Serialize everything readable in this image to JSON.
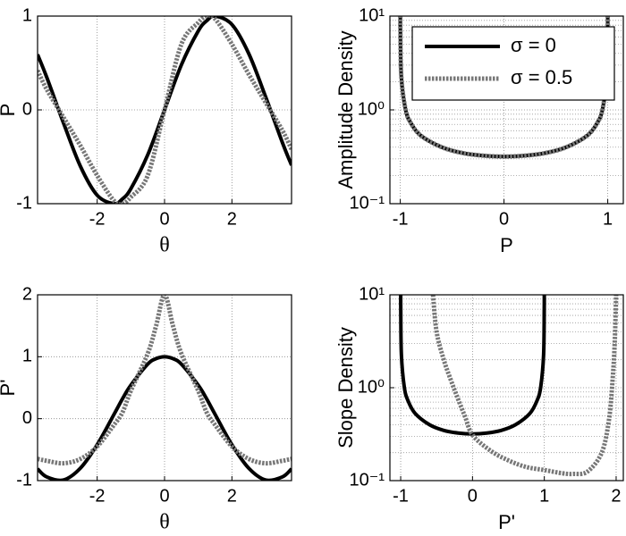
{
  "chart_data": [
    {
      "type": "line",
      "xlabel": "θ",
      "ylabel": "P",
      "grid": true,
      "xlim": [
        -3.77,
        3.77
      ],
      "xticks": [
        -2,
        0,
        2
      ],
      "ylim": [
        -1,
        1
      ],
      "yticks": [
        -1,
        0,
        1
      ],
      "x": [
        -3.77,
        -3.5,
        -3,
        -2.5,
        -2,
        -1.5,
        -1.25,
        -1,
        -0.5,
        0,
        0.5,
        1,
        1.25,
        1.5,
        2,
        2.5,
        3,
        3.5,
        3.77
      ],
      "series": [
        {
          "color": "#000000",
          "style": "solid",
          "values": [
            0.59,
            0.35,
            -0.14,
            -0.6,
            -0.91,
            -1.0,
            -0.95,
            -0.84,
            -0.48,
            0,
            0.48,
            0.84,
            0.95,
            1.0,
            0.91,
            0.6,
            0.14,
            -0.35,
            -0.59
          ]
        },
        {
          "color": "#777777",
          "style": "dotted",
          "values": [
            0.42,
            0.22,
            -0.08,
            -0.38,
            -0.7,
            -0.97,
            -1.0,
            -0.93,
            -0.7,
            0,
            0.7,
            0.93,
            1.0,
            0.97,
            0.7,
            0.38,
            0.08,
            -0.22,
            -0.42
          ]
        }
      ]
    },
    {
      "type": "line",
      "xlabel": "P",
      "ylabel": "Amplitude Density",
      "grid": true,
      "log_y": true,
      "minor_grid": true,
      "legend": "upper right",
      "xlim": [
        -1.1,
        1.15
      ],
      "xticks": [
        -1,
        0,
        1
      ],
      "ylim": [
        0.1,
        10
      ],
      "yticks": [
        {
          "value": 0.1,
          "label": "10⁻¹"
        },
        {
          "value": 1,
          "label": "10⁰"
        },
        {
          "value": 10,
          "label": "10¹"
        }
      ],
      "x": [
        -0.9995,
        -0.999,
        -0.99,
        -0.95,
        -0.9,
        -0.8,
        -0.6,
        -0.4,
        -0.2,
        0,
        0.2,
        0.4,
        0.6,
        0.8,
        0.9,
        0.95,
        0.99,
        0.999,
        0.9995
      ],
      "series": [
        {
          "name": "σ = 0",
          "color": "#000000",
          "style": "solid",
          "values": [
            10.07,
            7.12,
            2.26,
            1.02,
            0.73,
            0.53,
            0.4,
            0.347,
            0.325,
            0.318,
            0.325,
            0.347,
            0.4,
            0.53,
            0.73,
            1.02,
            2.26,
            7.12,
            10.07
          ]
        },
        {
          "name": "σ = 0.5",
          "color": "#777777",
          "style": "dotted",
          "values": [
            10.07,
            7.12,
            2.26,
            1.02,
            0.73,
            0.53,
            0.4,
            0.347,
            0.325,
            0.318,
            0.325,
            0.347,
            0.4,
            0.53,
            0.73,
            1.02,
            2.26,
            7.12,
            10.07
          ]
        }
      ]
    },
    {
      "type": "line",
      "xlabel": "θ",
      "ylabel": "P'",
      "grid": true,
      "xlim": [
        -3.77,
        3.77
      ],
      "xticks": [
        -2,
        0,
        2
      ],
      "ylim": [
        -1,
        2
      ],
      "yticks": [
        -1,
        0,
        1,
        2
      ],
      "x": [
        -3.77,
        -3.5,
        -3,
        -2.5,
        -2,
        -1.5,
        -1.25,
        -1,
        -0.5,
        -0.25,
        0,
        0.25,
        0.5,
        1,
        1.25,
        1.5,
        2,
        2.5,
        3,
        3.5,
        3.77
      ],
      "series": [
        {
          "color": "#000000",
          "style": "solid",
          "values": [
            -0.81,
            -0.94,
            -0.99,
            -0.8,
            -0.42,
            0.07,
            0.32,
            0.54,
            0.88,
            0.97,
            1,
            0.97,
            0.88,
            0.54,
            0.32,
            0.07,
            -0.42,
            -0.8,
            -0.99,
            -0.94,
            -0.81
          ]
        },
        {
          "color": "#777777",
          "style": "dotted",
          "values": [
            -0.65,
            -0.68,
            -0.72,
            -0.65,
            -0.45,
            -0.1,
            0.1,
            0.45,
            1.05,
            1.5,
            2.0,
            1.5,
            1.05,
            0.45,
            0.1,
            -0.1,
            -0.45,
            -0.65,
            -0.72,
            -0.68,
            -0.65
          ]
        }
      ]
    },
    {
      "type": "line",
      "xlabel": "P'",
      "ylabel": "Slope Density",
      "grid": true,
      "log_y": true,
      "minor_grid": true,
      "xlim": [
        -1.15,
        2.1
      ],
      "xticks": [
        -1,
        0,
        1,
        2
      ],
      "ylim": [
        0.1,
        10
      ],
      "yticks": [
        {
          "value": 0.1,
          "label": "10⁻¹"
        },
        {
          "value": 1,
          "label": "10⁰"
        },
        {
          "value": 10,
          "label": "10¹"
        }
      ],
      "series": [
        {
          "color": "#000000",
          "style": "solid",
          "x": [
            -0.9995,
            -0.999,
            -0.99,
            -0.95,
            -0.9,
            -0.8,
            -0.6,
            -0.4,
            -0.2,
            0,
            0.2,
            0.4,
            0.6,
            0.8,
            0.9,
            0.95,
            0.99,
            0.999,
            0.9995
          ],
          "values": [
            10.07,
            7.12,
            2.26,
            1.02,
            0.73,
            0.53,
            0.4,
            0.347,
            0.325,
            0.318,
            0.325,
            0.347,
            0.4,
            0.53,
            0.73,
            1.02,
            2.26,
            7.12,
            10.07
          ]
        },
        {
          "color": "#777777",
          "style": "dotted",
          "x": [
            -0.55,
            -0.5,
            -0.4,
            -0.3,
            -0.2,
            -0.1,
            0,
            0.25,
            0.5,
            0.75,
            1,
            1.25,
            1.4,
            1.6,
            1.8,
            1.9,
            1.95,
            1.98,
            2.0
          ],
          "values": [
            10,
            4,
            2,
            1.2,
            0.75,
            0.48,
            0.31,
            0.21,
            0.165,
            0.14,
            0.13,
            0.12,
            0.118,
            0.125,
            0.2,
            0.45,
            1.2,
            3,
            10
          ]
        }
      ]
    }
  ]
}
